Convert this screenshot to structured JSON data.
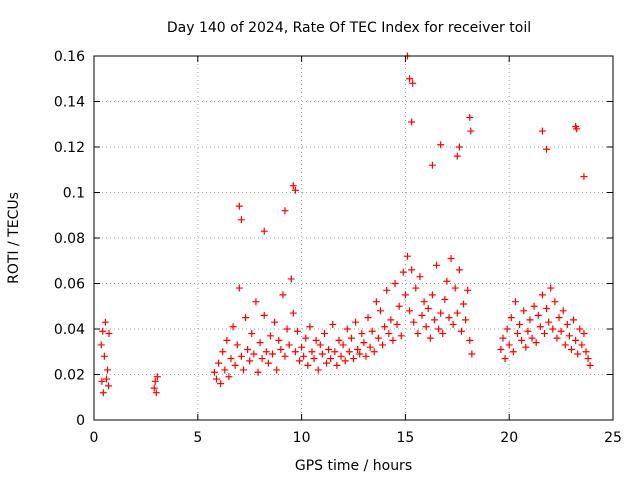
{
  "chart_data": {
    "type": "scatter",
    "title": "Day 140 of 2024, Rate Of TEC Index for receiver toil",
    "xlabel": "GPS time / hours",
    "ylabel": "ROTI / TECUs",
    "xlim": [
      0,
      25
    ],
    "ylim": [
      0,
      0.16
    ],
    "xticks": [
      0,
      5,
      10,
      15,
      20,
      25
    ],
    "yticks": [
      0,
      0.02,
      0.04,
      0.06,
      0.08,
      0.1,
      0.12,
      0.14,
      0.16
    ],
    "xtick_labels": [
      "0",
      "5",
      "10",
      "15",
      "20",
      "25"
    ],
    "ytick_labels": [
      "0",
      "0.02",
      "0.04",
      "0.06",
      "0.08",
      "0.1",
      "0.12",
      "0.14",
      "0.16"
    ],
    "grid": true,
    "marker": "+",
    "series": [
      {
        "name": "ROTI",
        "color": "#ff0000",
        "x": [
          0.35,
          0.38,
          0.42,
          0.45,
          0.5,
          0.55,
          0.6,
          0.65,
          0.7,
          0.72,
          2.9,
          2.95,
          3.0,
          3.05,
          5.8,
          5.9,
          6.0,
          6.1,
          6.2,
          6.3,
          6.4,
          6.5,
          6.6,
          6.7,
          6.8,
          6.9,
          7.0,
          7.1,
          7.2,
          7.3,
          7.4,
          7.5,
          7.6,
          7.7,
          7.8,
          7.9,
          8.0,
          8.1,
          8.2,
          8.3,
          8.4,
          8.5,
          8.6,
          8.7,
          8.8,
          8.9,
          9.0,
          9.1,
          9.2,
          9.3,
          9.4,
          9.5,
          9.6,
          9.7,
          9.8,
          9.9,
          10.0,
          10.1,
          10.2,
          10.3,
          10.4,
          10.5,
          10.6,
          10.7,
          10.8,
          10.9,
          11.0,
          11.1,
          11.2,
          11.3,
          11.4,
          11.5,
          11.6,
          11.7,
          11.8,
          11.9,
          12.0,
          12.1,
          12.2,
          12.3,
          12.4,
          12.5,
          12.6,
          12.7,
          12.8,
          12.9,
          13.0,
          13.1,
          13.2,
          13.3,
          13.4,
          13.5,
          13.6,
          13.7,
          13.8,
          13.9,
          14.0,
          14.1,
          14.2,
          14.3,
          14.4,
          14.5,
          14.6,
          14.7,
          14.8,
          14.9,
          15.0,
          15.1,
          15.2,
          15.3,
          15.4,
          15.5,
          15.6,
          15.7,
          15.8,
          15.9,
          16.0,
          16.1,
          16.2,
          16.3,
          16.4,
          16.5,
          16.6,
          16.7,
          16.8,
          16.9,
          17.0,
          17.1,
          17.2,
          17.3,
          17.4,
          17.5,
          17.6,
          17.7,
          17.8,
          17.9,
          18.0,
          18.1,
          18.2,
          19.6,
          19.7,
          19.8,
          19.9,
          20.0,
          20.1,
          20.2,
          20.3,
          20.4,
          20.5,
          20.6,
          20.7,
          20.8,
          20.9,
          21.0,
          21.1,
          21.2,
          21.3,
          21.4,
          21.5,
          21.6,
          21.7,
          21.8,
          21.9,
          22.0,
          22.1,
          22.2,
          22.3,
          22.4,
          22.5,
          22.6,
          22.7,
          22.8,
          22.9,
          23.0,
          23.1,
          23.2,
          23.3,
          23.4,
          23.5,
          23.6,
          23.7,
          23.8,
          23.9,
          7.0,
          7.1,
          8.2,
          9.2,
          9.6,
          9.7,
          15.1,
          15.2,
          15.3,
          15.35,
          16.3,
          16.7,
          17.5,
          17.6,
          18.1,
          18.15,
          21.6,
          21.8,
          23.2,
          23.25,
          23.6
        ],
        "y": [
          0.033,
          0.017,
          0.039,
          0.012,
          0.028,
          0.043,
          0.018,
          0.022,
          0.015,
          0.038,
          0.014,
          0.017,
          0.012,
          0.019,
          0.021,
          0.018,
          0.025,
          0.016,
          0.03,
          0.022,
          0.035,
          0.019,
          0.027,
          0.041,
          0.024,
          0.033,
          0.058,
          0.028,
          0.022,
          0.045,
          0.031,
          0.026,
          0.038,
          0.029,
          0.052,
          0.021,
          0.034,
          0.027,
          0.046,
          0.03,
          0.025,
          0.037,
          0.029,
          0.043,
          0.022,
          0.035,
          0.031,
          0.055,
          0.028,
          0.04,
          0.033,
          0.062,
          0.047,
          0.03,
          0.039,
          0.026,
          0.032,
          0.028,
          0.036,
          0.024,
          0.041,
          0.03,
          0.027,
          0.035,
          0.022,
          0.033,
          0.029,
          0.038,
          0.025,
          0.031,
          0.027,
          0.042,
          0.03,
          0.024,
          0.035,
          0.028,
          0.033,
          0.026,
          0.04,
          0.03,
          0.036,
          0.027,
          0.043,
          0.031,
          0.029,
          0.038,
          0.034,
          0.028,
          0.045,
          0.032,
          0.039,
          0.03,
          0.052,
          0.036,
          0.048,
          0.033,
          0.041,
          0.057,
          0.038,
          0.044,
          0.035,
          0.06,
          0.042,
          0.05,
          0.037,
          0.065,
          0.055,
          0.072,
          0.048,
          0.066,
          0.043,
          0.058,
          0.038,
          0.063,
          0.046,
          0.052,
          0.041,
          0.049,
          0.036,
          0.055,
          0.044,
          0.068,
          0.04,
          0.047,
          0.038,
          0.053,
          0.061,
          0.045,
          0.071,
          0.042,
          0.058,
          0.047,
          0.066,
          0.039,
          0.051,
          0.044,
          0.057,
          0.035,
          0.029,
          0.031,
          0.036,
          0.027,
          0.04,
          0.033,
          0.045,
          0.03,
          0.052,
          0.038,
          0.042,
          0.035,
          0.048,
          0.032,
          0.039,
          0.044,
          0.036,
          0.05,
          0.034,
          0.046,
          0.041,
          0.055,
          0.038,
          0.049,
          0.043,
          0.058,
          0.04,
          0.052,
          0.036,
          0.045,
          0.039,
          0.048,
          0.033,
          0.042,
          0.037,
          0.031,
          0.044,
          0.035,
          0.029,
          0.04,
          0.033,
          0.038,
          0.03,
          0.027,
          0.024,
          0.094,
          0.088,
          0.083,
          0.092,
          0.103,
          0.101,
          0.16,
          0.15,
          0.131,
          0.148,
          0.112,
          0.121,
          0.116,
          0.12,
          0.133,
          0.127,
          0.127,
          0.119,
          0.129,
          0.128,
          0.107
        ]
      }
    ]
  }
}
